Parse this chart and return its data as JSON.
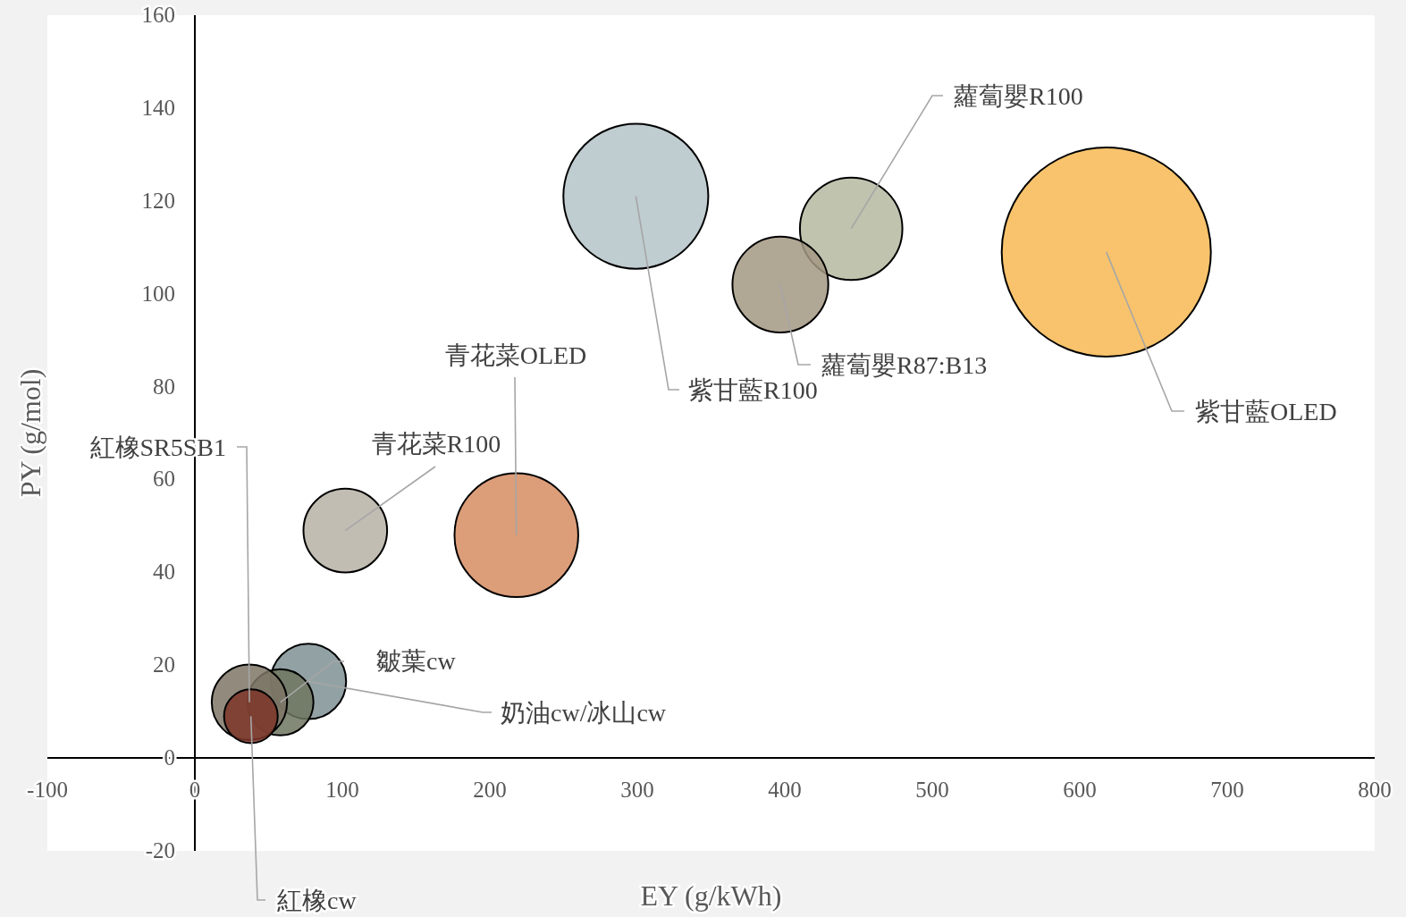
{
  "chart_data": {
    "type": "bubble",
    "xlabel": "EY (g/kWh)",
    "ylabel": "PY (g/mol)",
    "xlim": [
      -100,
      800
    ],
    "ylim": [
      -20,
      160
    ],
    "xticks": [
      -100,
      0,
      100,
      200,
      300,
      400,
      500,
      600,
      700,
      800
    ],
    "yticks": [
      -20,
      0,
      20,
      40,
      60,
      80,
      100,
      120,
      140,
      160
    ],
    "grid": false,
    "series": [
      {
        "name": "紫甘藍R100",
        "color": "#b4c3c8",
        "x": [
          299
        ],
        "values": [
          121
        ],
        "sizes": [
          0.48
        ]
      },
      {
        "name": "蘿蔔嬰R100",
        "color": "#b5b9a0",
        "x": [
          445
        ],
        "values": [
          114
        ],
        "sizes": [
          0.24
        ]
      },
      {
        "name": "蘿蔔嬰R87:B13",
        "color": "#a39882",
        "x": [
          397
        ],
        "values": [
          102
        ],
        "sizes": [
          0.21
        ]
      },
      {
        "name": "紫甘藍OLED",
        "color": "#f7b852",
        "x": [
          618
        ],
        "values": [
          109
        ],
        "sizes": [
          1
        ]
      },
      {
        "name": "青花菜OLED",
        "color": "#d68c62",
        "x": [
          218
        ],
        "values": [
          48
        ],
        "sizes": [
          0.35
        ]
      },
      {
        "name": "青花菜R100",
        "color": "#b7b1a6",
        "x": [
          102
        ],
        "values": [
          49
        ],
        "sizes": [
          0.16
        ]
      },
      {
        "name": "奶油cw/冰山cw",
        "color": "#7f9194",
        "x": [
          77
        ],
        "values": [
          16.5
        ],
        "sizes": [
          0.13
        ]
      },
      {
        "name": "皺葉cw",
        "color": "#6f7560",
        "x": [
          58
        ],
        "values": [
          12
        ],
        "sizes": [
          0.1
        ]
      },
      {
        "name": "紅橡SR5SB1",
        "color": "#7e7566",
        "x": [
          37
        ],
        "values": [
          12
        ],
        "sizes": [
          0.13
        ]
      },
      {
        "name": "紅橡cw",
        "color": "#7b3528",
        "x": [
          38
        ],
        "values": [
          9
        ],
        "sizes": [
          0.066
        ]
      }
    ]
  }
}
